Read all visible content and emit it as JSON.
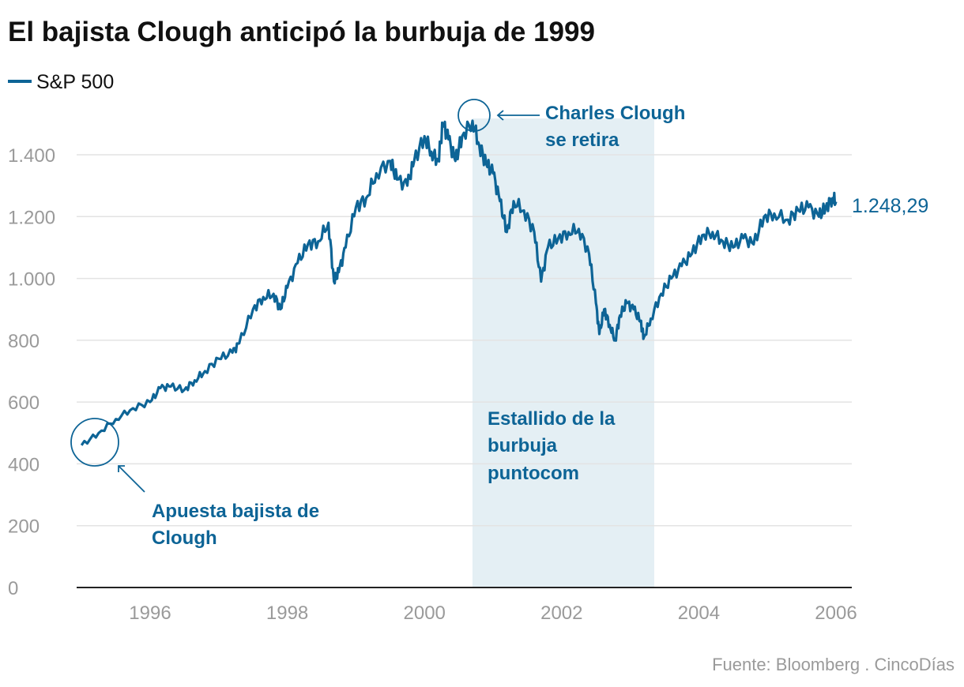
{
  "chart_data": {
    "type": "line",
    "title": "El bajista Clough anticipó la burbuja de 1999",
    "legend": [
      "S&P 500"
    ],
    "legend_placement": "top-left",
    "xlabel": "",
    "ylabel": "",
    "xlim": [
      1994.8,
      2006.3
    ],
    "ylim": [
      0,
      1500
    ],
    "grid": true,
    "x_ticks": [
      1996,
      1998,
      2000,
      2002,
      2004,
      2006
    ],
    "x_tick_labels": [
      "1996",
      "1998",
      "2000",
      "2002",
      "2004",
      "2006"
    ],
    "y_ticks": [
      0,
      200,
      400,
      600,
      800,
      1000,
      1200,
      1400
    ],
    "y_tick_labels": [
      "0",
      "200",
      "400",
      "600",
      "800",
      "1.000",
      "1.200",
      "1.400"
    ],
    "series": [
      {
        "name": "S&P 500",
        "color": "#0d6496",
        "x": [
          1995.0,
          1995.25,
          1995.5,
          1995.75,
          1996.0,
          1996.15,
          1996.3,
          1996.5,
          1996.65,
          1996.8,
          1997.0,
          1997.2,
          1997.3,
          1997.5,
          1997.65,
          1997.8,
          1997.9,
          1998.0,
          1998.15,
          1998.3,
          1998.45,
          1998.6,
          1998.68,
          1998.75,
          1998.85,
          1999.0,
          1999.15,
          1999.3,
          1999.5,
          1999.6,
          1999.75,
          1999.85,
          2000.0,
          2000.1,
          2000.2,
          2000.27,
          2000.35,
          2000.45,
          2000.55,
          2000.7,
          2000.8,
          2000.9,
          2001.0,
          2001.1,
          2001.2,
          2001.3,
          2001.45,
          2001.6,
          2001.7,
          2001.8,
          2001.95,
          2002.1,
          2002.25,
          2002.4,
          2002.5,
          2002.55,
          2002.62,
          2002.7,
          2002.78,
          2002.85,
          2002.95,
          2003.05,
          2003.15,
          2003.2,
          2003.3,
          2003.45,
          2003.6,
          2003.75,
          2003.9,
          2004.05,
          2004.2,
          2004.35,
          2004.5,
          2004.65,
          2004.8,
          2004.95,
          2005.1,
          2005.3,
          2005.45,
          2005.6,
          2005.75,
          2005.85,
          2005.95,
          2006.0
        ],
        "values": [
          460,
          500,
          545,
          580,
          600,
          645,
          650,
          640,
          670,
          700,
          740,
          760,
          790,
          900,
          940,
          950,
          900,
          970,
          1050,
          1110,
          1120,
          1180,
          990,
          1020,
          1100,
          1230,
          1260,
          1340,
          1380,
          1320,
          1300,
          1380,
          1460,
          1410,
          1380,
          1500,
          1450,
          1380,
          1460,
          1510,
          1430,
          1370,
          1340,
          1250,
          1150,
          1250,
          1220,
          1150,
          990,
          1100,
          1130,
          1150,
          1160,
          1080,
          920,
          820,
          900,
          850,
          800,
          880,
          920,
          900,
          860,
          810,
          870,
          950,
          1000,
          1040,
          1080,
          1140,
          1150,
          1120,
          1100,
          1130,
          1110,
          1200,
          1210,
          1190,
          1220,
          1230,
          1200,
          1230,
          1260,
          1248.29
        ]
      }
    ],
    "highlight_band": {
      "x": [
        2000.7,
        2003.35
      ],
      "label": "Estallido de la burbuja puntocom"
    },
    "annotations": [
      {
        "label": "Apuesta bajista de Clough",
        "lines": [
          "Apuesta bajista de",
          "Clough"
        ],
        "x": 1995.0,
        "y": 460
      },
      {
        "label": "Charles Clough se retira",
        "lines": [
          "Charles Clough",
          "se retira"
        ],
        "x": 2000.7,
        "y": 1510
      },
      {
        "band_lines": [
          "Estallido de la",
          "burbuja",
          "puntocom"
        ]
      }
    ],
    "end_label": "1.248,29",
    "source": "Fuente: Bloomberg",
    "brand": "CincoDías"
  }
}
